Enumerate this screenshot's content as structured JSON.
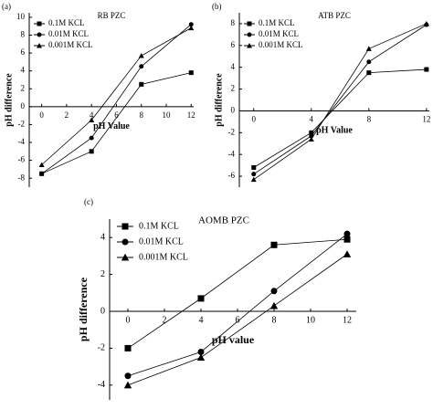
{
  "chart_data": [
    {
      "type": "line",
      "panel_label": "(a)",
      "title": "RB PZC",
      "x_label": "pH Value",
      "y_label": "pH difference",
      "x": [
        0,
        4,
        8,
        12
      ],
      "xlim": [
        -1,
        12.2
      ],
      "ylim": [
        -9,
        10.5
      ],
      "xticks": [
        0,
        2,
        4,
        6,
        8,
        10,
        12
      ],
      "yticks": [
        -8,
        -6,
        -4,
        -2,
        0,
        2,
        4,
        6,
        8,
        10
      ],
      "series": [
        {
          "name": "0.1M KCL",
          "marker": "square",
          "color": "#000000",
          "values": [
            -7.5,
            -5,
            2.5,
            3.8
          ]
        },
        {
          "name": "0.01M KCL",
          "marker": "circle",
          "color": "#000000",
          "values": [
            -7.5,
            -3.5,
            4.5,
            9.2
          ]
        },
        {
          "name": "0.001M KCL",
          "marker": "triangle",
          "color": "#000000",
          "values": [
            -6.5,
            -1.5,
            5.7,
            8.8
          ]
        }
      ]
    },
    {
      "type": "line",
      "panel_label": "(b)",
      "title": "ATB PZC",
      "x_label": "pH Value",
      "y_label": "pH difference",
      "x": [
        0,
        4,
        8,
        12
      ],
      "xlim": [
        -1,
        12.2
      ],
      "ylim": [
        -7,
        9
      ],
      "xticks": [
        0,
        4,
        8,
        12
      ],
      "yticks": [
        -6,
        -4,
        -2,
        0,
        2,
        4,
        6,
        8
      ],
      "series": [
        {
          "name": "0.1M KCL",
          "marker": "square",
          "color": "#000000",
          "values": [
            -5.2,
            -2,
            3.5,
            3.8
          ]
        },
        {
          "name": "0.01M KCL",
          "marker": "circle",
          "color": "#000000",
          "values": [
            -5.8,
            -2.3,
            4.5,
            7.9
          ]
        },
        {
          "name": "0.001M KCL",
          "marker": "triangle",
          "color": "#000000",
          "values": [
            -6.3,
            -2.6,
            5.7,
            8
          ]
        }
      ]
    },
    {
      "type": "line",
      "panel_label": "(c)",
      "title": "AOMB PZC",
      "x_label": "pH value",
      "y_label": "pH difference",
      "x": [
        0,
        4,
        8,
        12
      ],
      "xlim": [
        -1,
        12.5
      ],
      "ylim": [
        -4.8,
        5
      ],
      "xticks": [
        0,
        2,
        4,
        6,
        8,
        10,
        12
      ],
      "yticks": [
        -4,
        -2,
        0,
        2,
        4
      ],
      "series": [
        {
          "name": "0.1M KCL",
          "marker": "square",
          "color": "#000000",
          "values": [
            -2,
            0.7,
            3.6,
            3.9
          ]
        },
        {
          "name": "0.01M KCL",
          "marker": "circle",
          "color": "#000000",
          "values": [
            -3.5,
            -2.2,
            1.1,
            4.2
          ]
        },
        {
          "name": "0.001M KCL",
          "marker": "triangle",
          "color": "#000000",
          "values": [
            -4,
            -2.5,
            0.3,
            3.1
          ]
        }
      ]
    }
  ]
}
